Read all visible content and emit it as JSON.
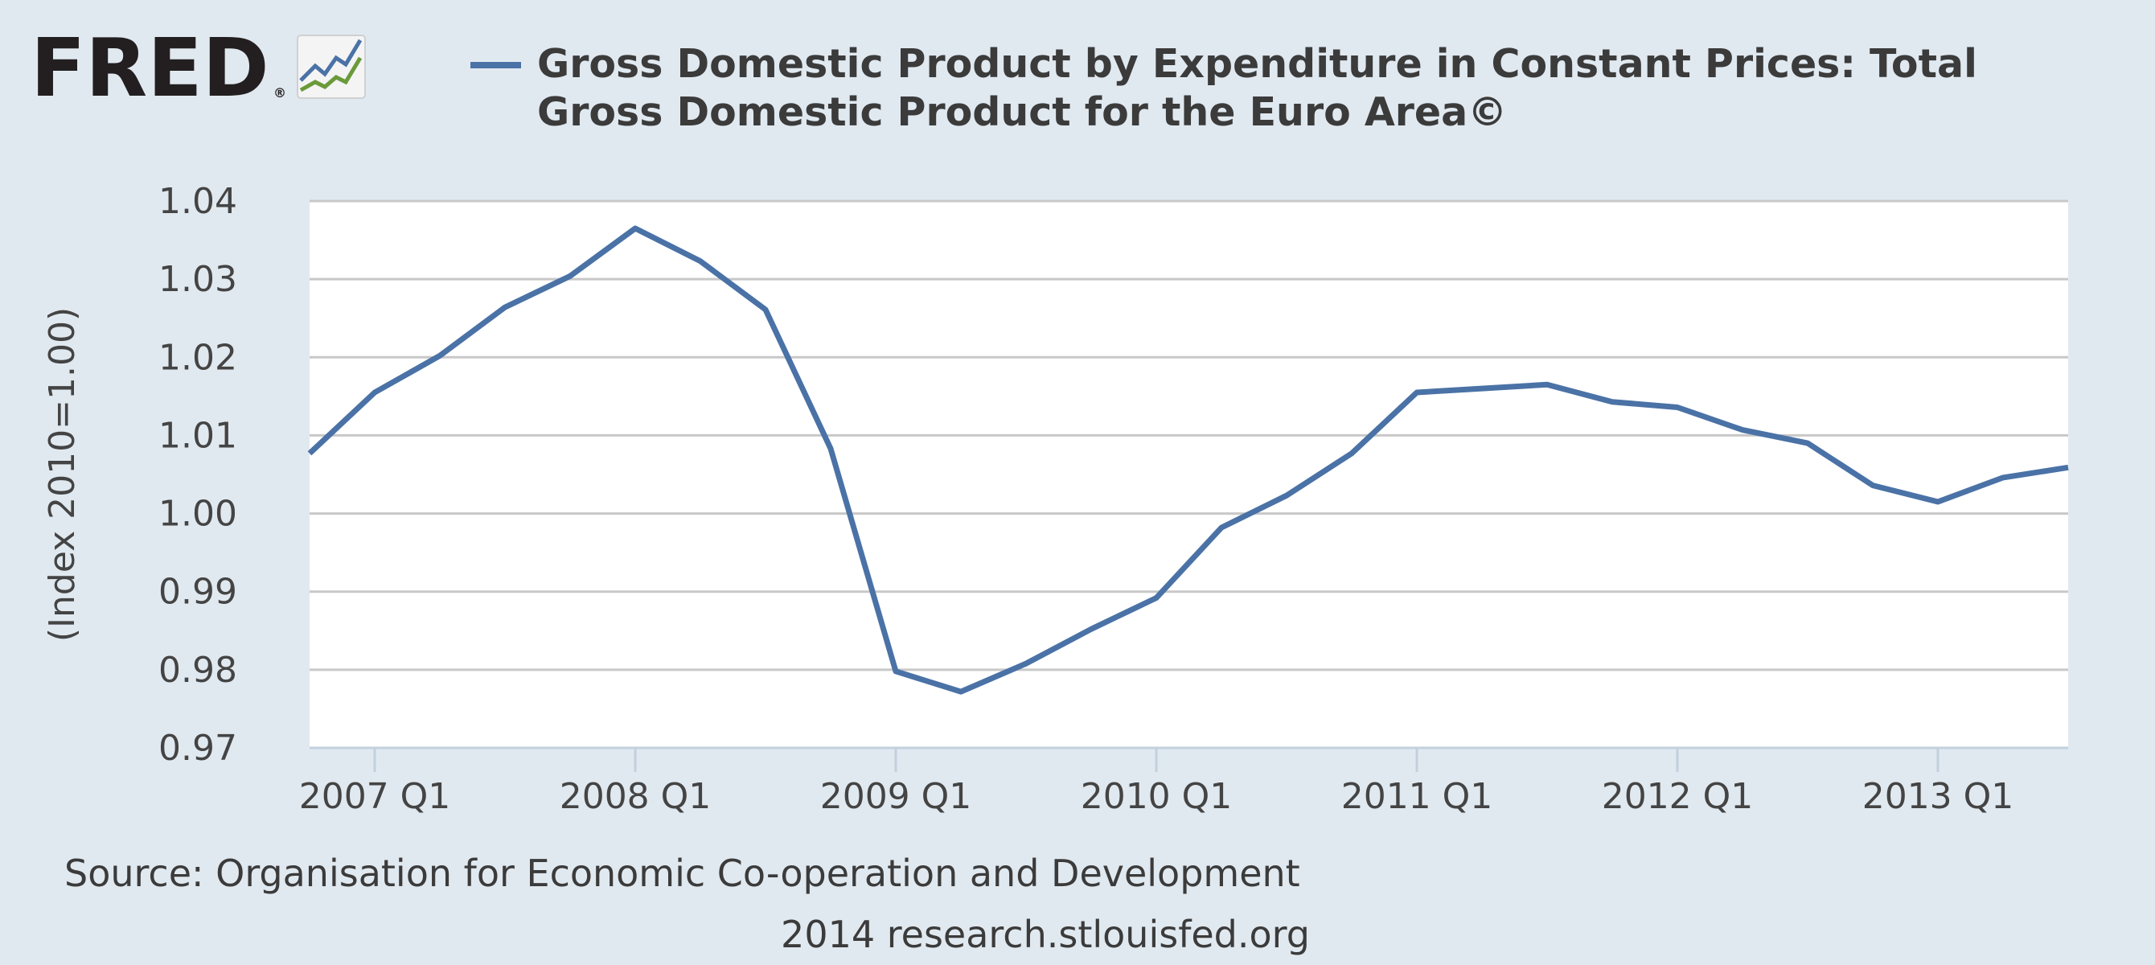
{
  "logo": {
    "text": "FRED",
    "registered": "®"
  },
  "legend": {
    "line1": "Gross Domestic Product by Expenditure in Constant Prices: Total",
    "line2": "Gross Domestic Product for the Euro Area©"
  },
  "colors": {
    "series": "#4a72a6",
    "plot_bg": "#ffffff",
    "page_bg": "#e1e9f0",
    "grid": "#c8c8c8"
  },
  "footer": {
    "source": "Source: Organisation for Economic Co-operation and Development",
    "credit": "2014 research.stlouisfed.org"
  },
  "chart_data": {
    "type": "line",
    "title": "Gross Domestic Product by Expenditure in Constant Prices: Total Gross Domestic Product for the Euro Area©",
    "ylabel": "(Index 2010=1.00)",
    "xlabel": "",
    "ylim": [
      0.97,
      1.04
    ],
    "yticks": [
      "1.04",
      "1.03",
      "1.02",
      "1.01",
      "1.00",
      "0.99",
      "0.98",
      "0.97"
    ],
    "xticks": [
      "2007 Q1",
      "2008 Q1",
      "2009 Q1",
      "2010 Q1",
      "2011 Q1",
      "2012 Q1",
      "2013 Q1"
    ],
    "grid": true,
    "legend_position": "top",
    "series": [
      {
        "name": "Gross Domestic Product by Expenditure in Constant Prices: Total Gross Domestic Product for the Euro Area©",
        "x": [
          "2006 Q4",
          "2007 Q1",
          "2007 Q2",
          "2007 Q3",
          "2007 Q4",
          "2008 Q1",
          "2008 Q2",
          "2008 Q3",
          "2008 Q4",
          "2009 Q1",
          "2009 Q2",
          "2009 Q3",
          "2009 Q4",
          "2010 Q1",
          "2010 Q2",
          "2010 Q3",
          "2010 Q4",
          "2011 Q1",
          "2011 Q2",
          "2011 Q3",
          "2011 Q4",
          "2012 Q1",
          "2012 Q2",
          "2012 Q3",
          "2012 Q4",
          "2013 Q1",
          "2013 Q2",
          "2013 Q3"
        ],
        "values": [
          1.0077,
          1.0155,
          1.0202,
          1.0264,
          1.0304,
          1.0365,
          1.0323,
          1.0261,
          1.0083,
          0.9798,
          0.9772,
          0.9808,
          0.9852,
          0.9892,
          0.9982,
          1.0023,
          1.0077,
          1.0155,
          1.016,
          1.0165,
          1.0143,
          1.0136,
          1.0107,
          1.009,
          1.0036,
          1.0015,
          1.0046,
          1.0059
        ]
      }
    ]
  }
}
